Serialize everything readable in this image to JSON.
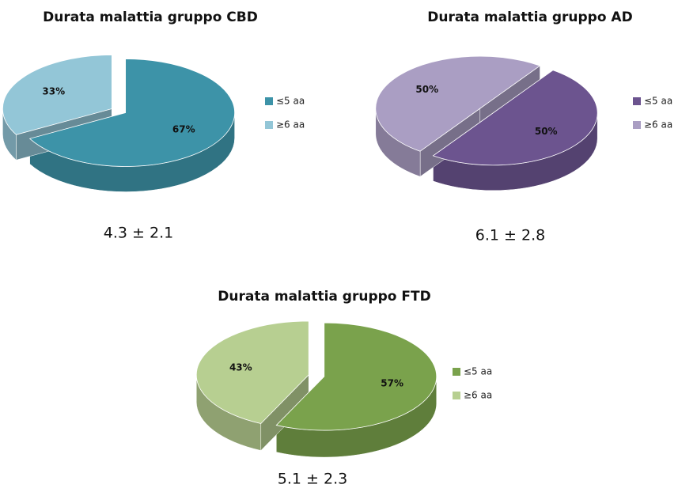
{
  "chart_data": [
    {
      "type": "pie",
      "title": "Durata malattia gruppo  CBD",
      "categories": [
        "≤5 aa",
        "≥6 aa"
      ],
      "values": [
        67,
        33
      ],
      "value_labels": [
        "67%",
        "33%"
      ],
      "colors": [
        "#3d93a8",
        "#93c6d7"
      ],
      "annotation": "4.3 ± 2.1"
    },
    {
      "type": "pie",
      "title": "Durata malattia gruppo AD",
      "categories": [
        "≤5 aa",
        "≥6 aa"
      ],
      "values": [
        50,
        50
      ],
      "value_labels": [
        "50%",
        "50%"
      ],
      "colors": [
        "#6c548f",
        "#aa9ec3"
      ],
      "annotation": "6.1 ± 2.8"
    },
    {
      "type": "pie",
      "title": "Durata malattia gruppo FTD",
      "categories": [
        "≤5 aa",
        "≥6 aa"
      ],
      "values": [
        57,
        43
      ],
      "value_labels": [
        "57%",
        "43%"
      ],
      "colors": [
        "#7aa24c",
        "#b7cf91"
      ],
      "annotation": "5.1 ± 2.3"
    }
  ]
}
